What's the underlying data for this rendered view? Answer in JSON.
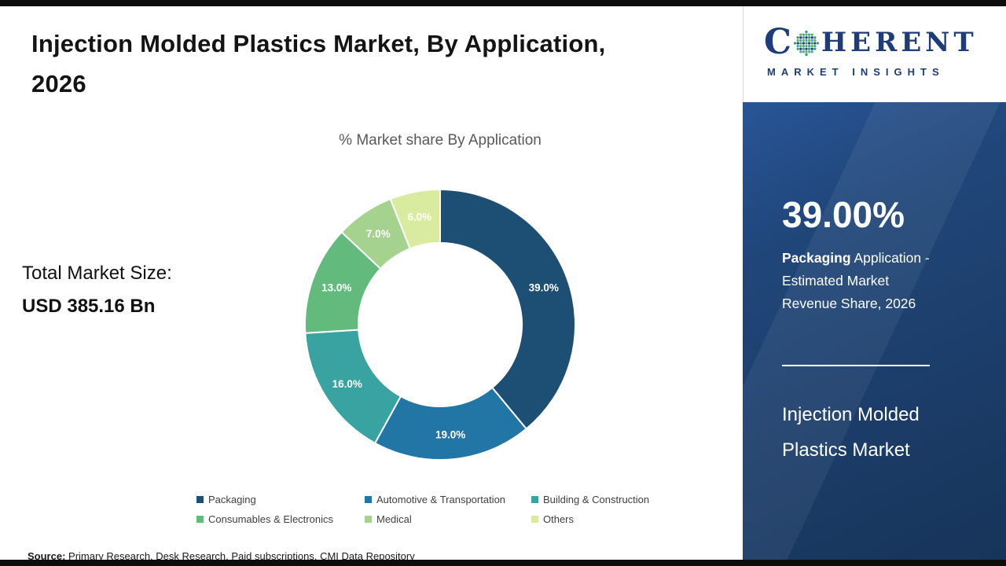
{
  "page": {
    "title_line1": "Injection Molded Plastics Market, By Application,",
    "title_line2": "2026",
    "source_label": "Source:",
    "source_text": " Primary Research, Desk Research, Paid subscriptions, CMI Data Repository"
  },
  "main": {
    "chart_title": "% Market share By Application",
    "market_size_label": "Total Market Size:",
    "market_size_value": "USD 385.16 Bn"
  },
  "chart_data": {
    "type": "pie",
    "subtype": "donut",
    "title": "% Market share By Application",
    "categories": [
      "Packaging",
      "Automotive & Transportation",
      "Building & Construction",
      "Consumables & Electronics",
      "Medical",
      "Others"
    ],
    "values": [
      39.0,
      19.0,
      16.0,
      13.0,
      7.0,
      6.0
    ],
    "labels": [
      "39.0%",
      "19.0%",
      "16.0%",
      "13.0%",
      "7.0%",
      "6.0%"
    ],
    "colors": [
      "#1d4e74",
      "#2176a5",
      "#38a3a0",
      "#62bb7d",
      "#a5d28f",
      "#d9eb9f"
    ],
    "start_angle_deg": 0,
    "direction": "clockwise",
    "legend_position": "bottom"
  },
  "sidebar": {
    "logo": {
      "c": "C",
      "rest": "HERENT",
      "subtitle": "MARKET INSIGHTS"
    },
    "stat_value": "39.00%",
    "stat_desc_bold": "Packaging",
    "stat_desc_rest": " Application - Estimated Market Revenue Share, 2026",
    "market_name_line1": "Injection Molded",
    "market_name_line2": "Plastics Market"
  }
}
